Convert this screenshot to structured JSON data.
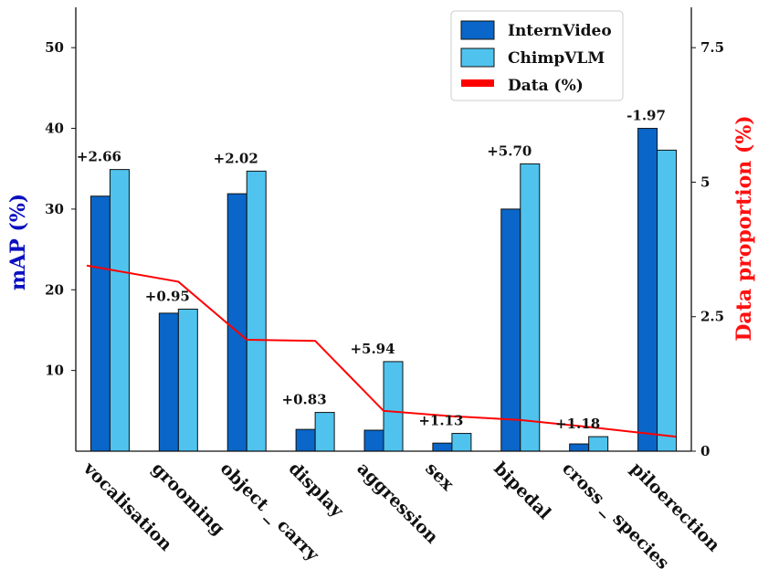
{
  "chart_data": {
    "type": "bar",
    "categories": [
      "vocalisation",
      "grooming",
      "object_carry",
      "display",
      "aggression",
      "sex",
      "bipedal",
      "cross_species",
      "piloerection"
    ],
    "category_labels": [
      "vocalisation",
      "grooming",
      "object _ carry",
      "display",
      "aggression",
      "sex",
      "bipedal",
      "cross _ species",
      "piloerection"
    ],
    "series": [
      {
        "name": "InternVideo",
        "values": [
          31.6,
          17.1,
          31.9,
          2.7,
          2.6,
          1.0,
          30.0,
          0.9,
          40.0
        ],
        "color": "#0a66c8"
      },
      {
        "name": "ChimpVLM",
        "values": [
          34.9,
          17.6,
          34.7,
          4.8,
          11.1,
          2.2,
          35.6,
          1.8,
          37.3
        ],
        "color": "#4fc3ee"
      }
    ],
    "line_series": {
      "name": "Data (%)",
      "color": "#ff0000",
      "axis": "right",
      "values": [
        3.45,
        3.15,
        2.07,
        2.05,
        0.75,
        0.65,
        0.58,
        0.45,
        0.27
      ]
    },
    "deltas": [
      "+2.66",
      "+0.95",
      "+2.02",
      "+0.83",
      "+5.94",
      "+1.13",
      "+5.70",
      "+1.18",
      "-1.97"
    ],
    "ylabel": "mAP (%)",
    "ylabel_color": "#0a10c0",
    "y2label": "Data proportion  (%)",
    "y2label_color": "#ff1010",
    "ylim": [
      0,
      55
    ],
    "y2lim": [
      0,
      8.25
    ],
    "yticks": [
      10,
      20,
      30,
      40,
      50
    ],
    "y2ticks": [
      0,
      2.5,
      5,
      7.5
    ],
    "y2tick_labels": [
      "0",
      "2.5",
      "5",
      "7.5"
    ],
    "legend_position": "top-right",
    "grid": false
  }
}
